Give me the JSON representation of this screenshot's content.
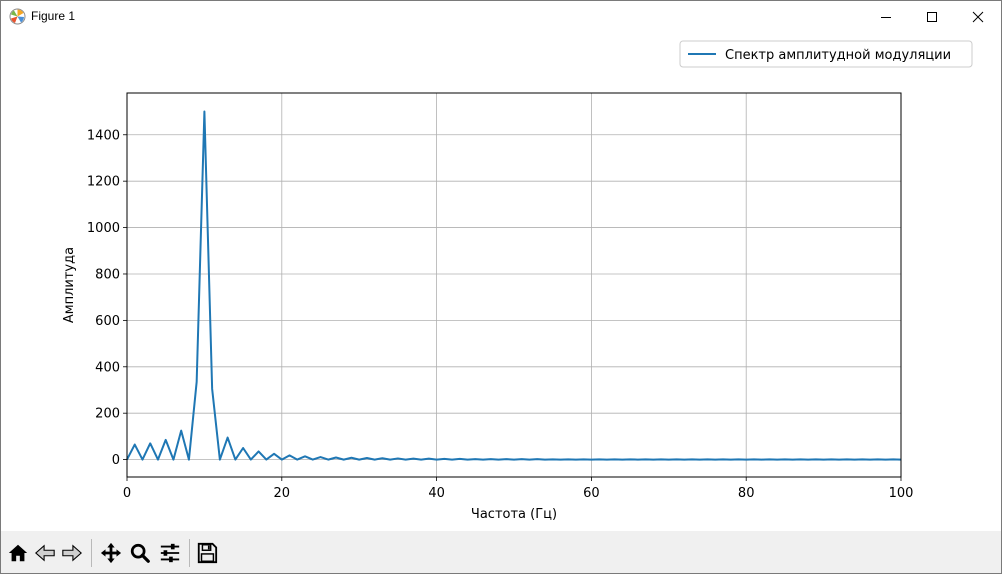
{
  "window": {
    "title": "Figure 1",
    "controls": {
      "minimize": "minimize-icon",
      "maximize": "maximize-icon",
      "close": "close-icon"
    }
  },
  "toolbar": {
    "buttons": [
      {
        "id": "home",
        "icon": "home-icon"
      },
      {
        "id": "back",
        "icon": "arrow-left-icon"
      },
      {
        "id": "forward",
        "icon": "arrow-right-icon"
      },
      {
        "id": "pan",
        "icon": "move-icon"
      },
      {
        "id": "zoom",
        "icon": "magnifier-icon"
      },
      {
        "id": "configure",
        "icon": "sliders-icon"
      },
      {
        "id": "save",
        "icon": "floppy-disk-icon"
      }
    ]
  },
  "chart_data": {
    "type": "line",
    "title": "",
    "xlabel": "Частота (Гц)",
    "ylabel": "Амплитуда",
    "xlim": [
      0,
      100
    ],
    "ylim": [
      -75,
      1580
    ],
    "xticks": [
      0,
      20,
      40,
      60,
      80,
      100
    ],
    "yticks": [
      0,
      200,
      400,
      600,
      800,
      1000,
      1200,
      1400
    ],
    "grid": true,
    "legend": {
      "position": "top-right",
      "outside": true
    },
    "series": [
      {
        "name": "Спектр амплитудной модуляции",
        "color": "#1f77b4",
        "x": [
          0,
          1,
          2,
          3,
          4,
          5,
          6,
          7,
          8,
          9,
          10,
          11,
          12,
          13,
          14,
          15,
          16,
          17,
          18,
          19,
          20,
          21,
          22,
          23,
          24,
          25,
          26,
          27,
          28,
          29,
          30,
          31,
          32,
          33,
          34,
          35,
          36,
          37,
          38,
          39,
          40,
          41,
          42,
          43,
          44,
          45,
          46,
          47,
          48,
          49,
          50,
          51,
          52,
          53,
          54,
          55,
          56,
          57,
          58,
          59,
          60,
          61,
          62,
          63,
          64,
          65,
          66,
          67,
          68,
          69,
          70,
          71,
          72,
          73,
          74,
          75,
          76,
          77,
          78,
          79,
          80,
          81,
          82,
          83,
          84,
          85,
          86,
          87,
          88,
          89,
          90,
          91,
          92,
          93,
          94,
          95,
          96,
          97,
          98,
          99,
          100
        ],
        "y": [
          0,
          65,
          0,
          70,
          0,
          85,
          0,
          125,
          0,
          335,
          1500,
          305,
          0,
          95,
          0,
          50,
          0,
          35,
          0,
          25,
          0,
          18,
          0,
          14,
          0,
          11,
          0,
          9,
          0,
          8,
          0,
          7,
          0,
          6,
          0,
          5,
          0,
          4,
          0,
          4,
          0,
          3,
          0,
          3,
          0,
          2,
          0,
          2,
          0,
          2,
          0,
          2,
          0,
          2,
          0,
          1,
          0,
          1,
          0,
          1,
          0,
          1,
          0,
          1,
          0,
          1,
          0,
          1,
          0,
          1,
          0,
          1,
          0,
          1,
          0,
          1,
          0,
          1,
          0,
          1,
          0,
          1,
          0,
          1,
          0,
          1,
          0,
          1,
          0,
          1,
          0,
          1,
          0,
          1,
          0,
          1,
          0,
          1,
          0,
          1,
          0
        ]
      }
    ]
  }
}
